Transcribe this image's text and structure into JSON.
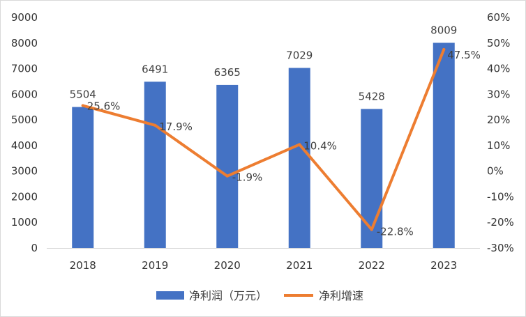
{
  "chart_data": {
    "type": "bar",
    "categories": [
      "2018",
      "2019",
      "2020",
      "2021",
      "2022",
      "2023"
    ],
    "series": [
      {
        "name": "净利润（万元）",
        "type": "bar",
        "axis": "left",
        "color": "#4472C4",
        "values": [
          5504,
          6491,
          6365,
          7029,
          5428,
          8009
        ],
        "labels": [
          "5504",
          "6491",
          "6365",
          "7029",
          "5428",
          "8009"
        ]
      },
      {
        "name": "净利增速",
        "type": "line",
        "axis": "right",
        "color": "#ED7D31",
        "values": [
          25.6,
          17.9,
          -1.9,
          10.4,
          -22.8,
          47.5
        ],
        "labels": [
          "25.6%",
          "17.9%",
          "-1.9%",
          "10.4%",
          "-22.8%",
          "47.5%"
        ]
      }
    ],
    "y_left": {
      "min": 0,
      "max": 9000,
      "ticks": [
        "0",
        "1000",
        "2000",
        "3000",
        "4000",
        "5000",
        "6000",
        "7000",
        "8000",
        "9000"
      ]
    },
    "y_right": {
      "min": -30,
      "max": 60,
      "ticks": [
        "-30%",
        "-20%",
        "-10%",
        "0%",
        "10%",
        "20%",
        "30%",
        "40%",
        "50%",
        "60%"
      ]
    },
    "grid": false,
    "legend": "bottom",
    "title": "",
    "xlabel": "",
    "ylabel": ""
  }
}
